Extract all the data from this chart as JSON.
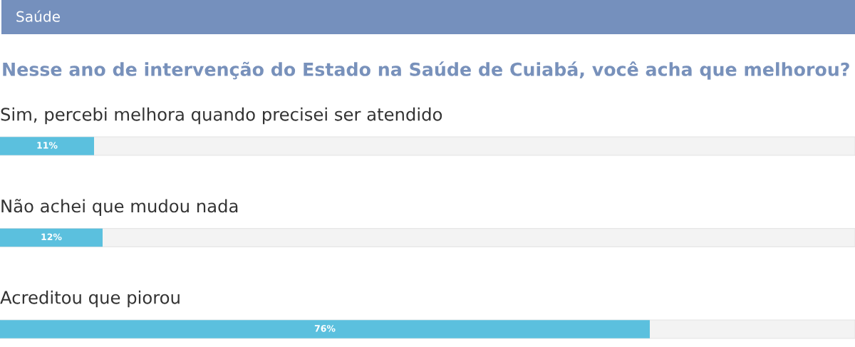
{
  "chart_data": {
    "type": "bar",
    "orientation": "horizontal",
    "title": "Nesse ano de intervenção do Estado na Saúde de Cuiabá, você acha que melhorou?",
    "annotations": [
      "Saúde"
    ],
    "categories": [
      "Sim, percebi melhora quando precisei ser atendido",
      "Não achei que mudou nada",
      "Acreditou que piorou"
    ],
    "values": [
      11,
      12,
      76
    ],
    "value_labels": [
      "11%",
      "12%",
      "76%"
    ],
    "color": "#5bc0de",
    "xlim": [
      0,
      100
    ]
  }
}
